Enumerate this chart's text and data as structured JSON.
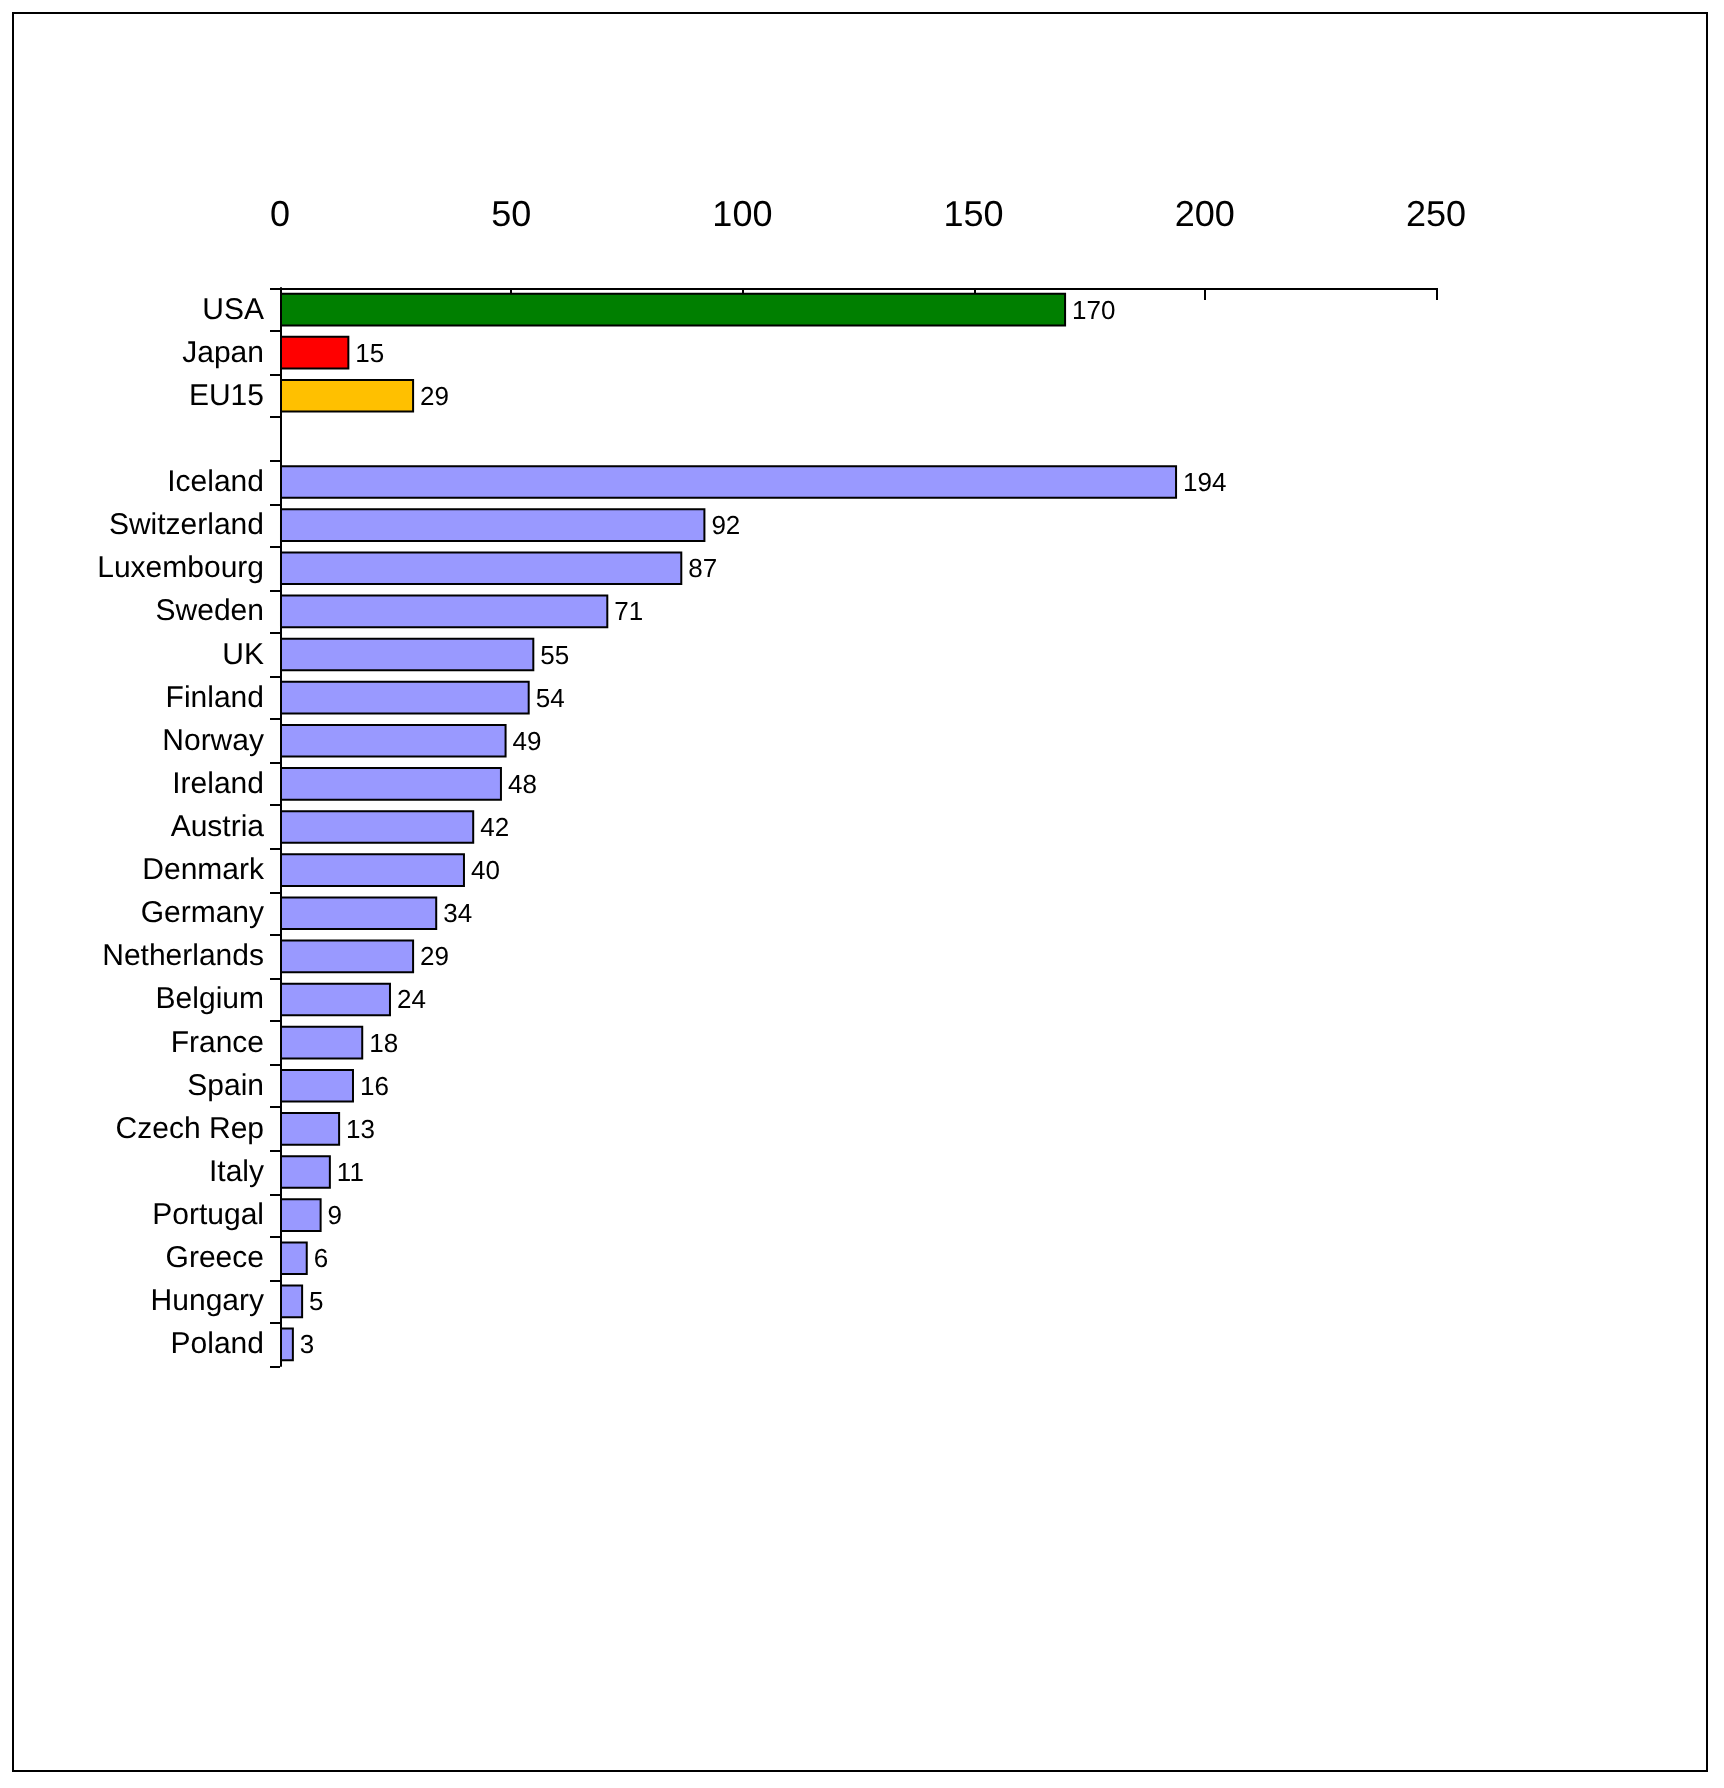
{
  "chart_data": {
    "type": "bar",
    "orientation": "horizontal",
    "categories": [
      "USA",
      "Japan",
      "EU15",
      null,
      "Iceland",
      "Switzerland",
      "Luxembourg",
      "Sweden",
      "UK",
      "Finland",
      "Norway",
      "Ireland",
      "Austria",
      "Denmark",
      "Germany",
      "Netherlands",
      "Belgium",
      "France",
      "Spain",
      "Czech Rep",
      "Italy",
      "Portugal",
      "Greece",
      "Hungary",
      "Poland"
    ],
    "values": [
      170,
      15,
      29,
      null,
      194,
      92,
      87,
      71,
      55,
      54,
      49,
      48,
      42,
      40,
      34,
      29,
      24,
      18,
      16,
      13,
      11,
      9,
      6,
      5,
      3
    ],
    "colors": [
      "#007f00",
      "#ff0000",
      "#ffc000",
      null,
      "#9999ff",
      "#9999ff",
      "#9999ff",
      "#9999ff",
      "#9999ff",
      "#9999ff",
      "#9999ff",
      "#9999ff",
      "#9999ff",
      "#9999ff",
      "#9999ff",
      "#9999ff",
      "#9999ff",
      "#9999ff",
      "#9999ff",
      "#9999ff",
      "#9999ff",
      "#9999ff",
      "#9999ff",
      "#9999ff",
      "#9999ff"
    ],
    "xlim": [
      0,
      250
    ],
    "xticks": [
      0,
      50,
      100,
      150,
      200,
      250
    ],
    "data_labels": true
  }
}
